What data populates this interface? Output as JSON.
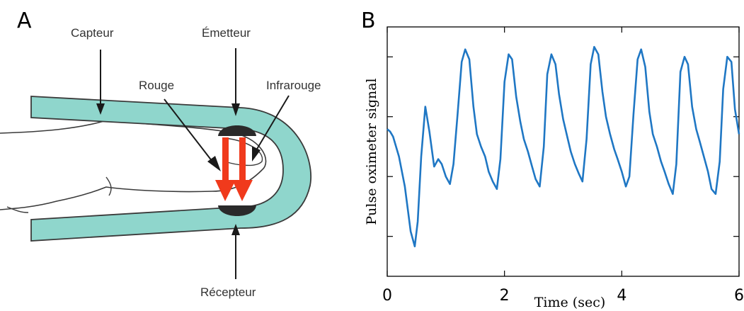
{
  "panel_a": {
    "letter": "A",
    "labels": {
      "capteur": "Capteur",
      "emetteur": "Émetteur",
      "rouge": "Rouge",
      "infrarouge": "Infrarouge",
      "recepteur": "Récepteur"
    },
    "colors": {
      "sensor_fill": "#8fd6cc",
      "led_body": "#2a2a2a",
      "light_arrow": "#f03a1c"
    }
  },
  "panel_b": {
    "letter": "B",
    "chart_data": {
      "type": "line",
      "xlabel": "Time (sec)",
      "ylabel": "Pulse oximeter signal",
      "xlim": [
        0,
        6
      ],
      "ylim": [
        0,
        1
      ],
      "xticks": [
        "0",
        "2",
        "4",
        "6"
      ],
      "grid": false,
      "color": "#1f77c4",
      "series": [
        {
          "x": [
            0.0,
            0.05,
            0.1,
            0.2,
            0.3,
            0.4,
            0.47,
            0.52,
            0.58,
            0.65,
            0.72,
            0.8,
            0.87,
            0.93,
            1.0,
            1.07,
            1.13,
            1.2,
            1.27,
            1.33,
            1.4,
            1.47,
            1.53,
            1.6,
            1.67,
            1.73,
            1.8,
            1.87,
            1.93,
            2.0,
            2.07,
            2.13,
            2.2,
            2.27,
            2.33,
            2.4,
            2.47,
            2.53,
            2.6,
            2.67,
            2.73,
            2.8,
            2.87,
            2.93,
            3.0,
            3.07,
            3.13,
            3.2,
            3.27,
            3.33,
            3.4,
            3.47,
            3.53,
            3.6,
            3.67,
            3.73,
            3.8,
            3.87,
            3.93,
            4.0,
            4.07,
            4.13,
            4.2,
            4.27,
            4.33,
            4.4,
            4.47,
            4.53,
            4.6,
            4.67,
            4.73,
            4.8,
            4.87,
            4.93,
            5.0,
            5.07,
            5.13,
            5.2,
            5.27,
            5.33,
            5.4,
            5.47,
            5.53,
            5.6,
            5.67,
            5.73,
            5.8,
            5.87,
            5.93,
            6.0
          ],
          "y": [
            0.59,
            0.58,
            0.56,
            0.48,
            0.36,
            0.18,
            0.12,
            0.22,
            0.48,
            0.68,
            0.58,
            0.44,
            0.47,
            0.45,
            0.4,
            0.37,
            0.45,
            0.65,
            0.86,
            0.91,
            0.87,
            0.68,
            0.57,
            0.52,
            0.48,
            0.42,
            0.38,
            0.35,
            0.47,
            0.78,
            0.89,
            0.87,
            0.72,
            0.62,
            0.55,
            0.5,
            0.44,
            0.39,
            0.36,
            0.52,
            0.81,
            0.89,
            0.85,
            0.73,
            0.63,
            0.56,
            0.5,
            0.45,
            0.41,
            0.38,
            0.55,
            0.85,
            0.92,
            0.89,
            0.74,
            0.64,
            0.57,
            0.51,
            0.47,
            0.42,
            0.36,
            0.4,
            0.65,
            0.87,
            0.91,
            0.84,
            0.66,
            0.57,
            0.52,
            0.46,
            0.42,
            0.37,
            0.33,
            0.45,
            0.82,
            0.88,
            0.85,
            0.68,
            0.59,
            0.54,
            0.48,
            0.42,
            0.35,
            0.33,
            0.46,
            0.75,
            0.88,
            0.86,
            0.67,
            0.57
          ]
        }
      ]
    }
  }
}
